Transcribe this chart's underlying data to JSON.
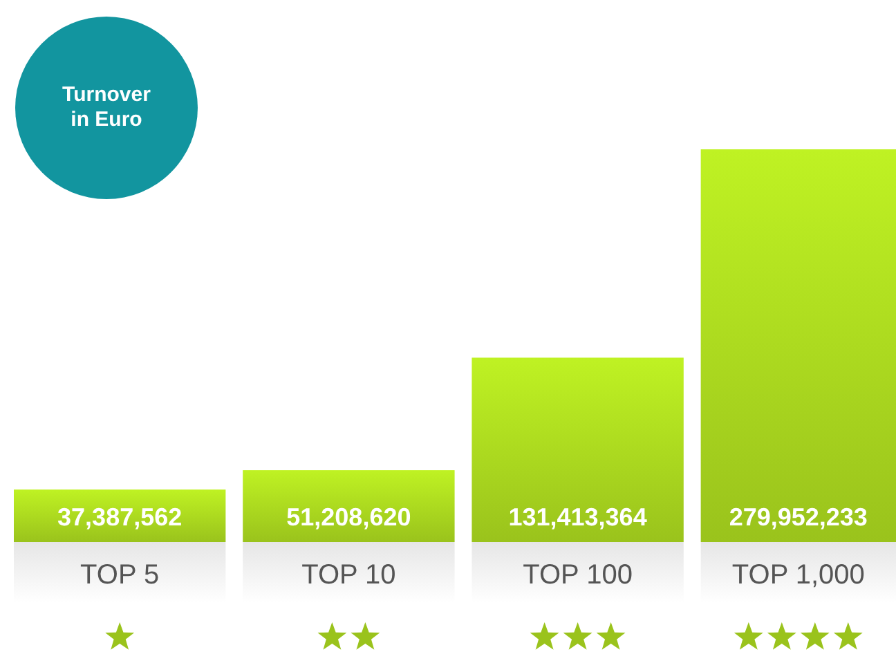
{
  "chart_data": {
    "type": "bar",
    "title": "Turnover in Euro",
    "categories": [
      "TOP 5",
      "TOP 10",
      "TOP 100",
      "TOP 1,000"
    ],
    "values": [
      37387562,
      51208620,
      131413364,
      279952233
    ],
    "value_labels": [
      "37,387,562",
      "51,208,620",
      "131,413,364",
      "279,952,233"
    ],
    "color": "#9ac31c"
  }
}
